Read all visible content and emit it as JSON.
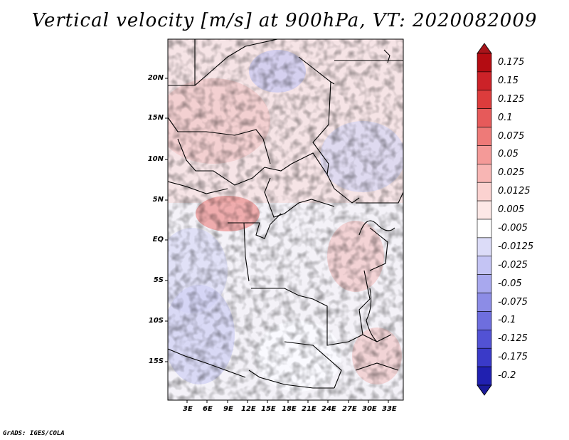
{
  "title": "Vertical velocity [m/s] at 900hPa, VT: 2020082009",
  "credit": "GrADS: IGES/COLA",
  "map": {
    "lat_labels": [
      "20N",
      "15N",
      "10N",
      "5N",
      "EQ",
      "5S",
      "10S",
      "15S"
    ],
    "lon_labels": [
      "3E",
      "6E",
      "9E",
      "12E",
      "15E",
      "18E",
      "21E",
      "24E",
      "27E",
      "30E",
      "33E"
    ]
  },
  "colorbar": {
    "labels": [
      "0.175",
      "0.15",
      "0.125",
      "0.1",
      "0.075",
      "0.05",
      "0.025",
      "0.0125",
      "0.005",
      "-0.005",
      "-0.0125",
      "-0.025",
      "-0.05",
      "-0.075",
      "-0.1",
      "-0.125",
      "-0.175",
      "-0.2"
    ],
    "colors": [
      "#b40c12",
      "#cc2228",
      "#dc3c3c",
      "#e65a5a",
      "#ee7a78",
      "#f49a98",
      "#f8b6b4",
      "#fbd2d0",
      "#fde8e6",
      "#ffffff",
      "#dcdcf8",
      "#c4c4f4",
      "#a8a8ee",
      "#8c8ce6",
      "#6e6ede",
      "#5252d4",
      "#3a3ac8",
      "#2020b0"
    ]
  }
}
